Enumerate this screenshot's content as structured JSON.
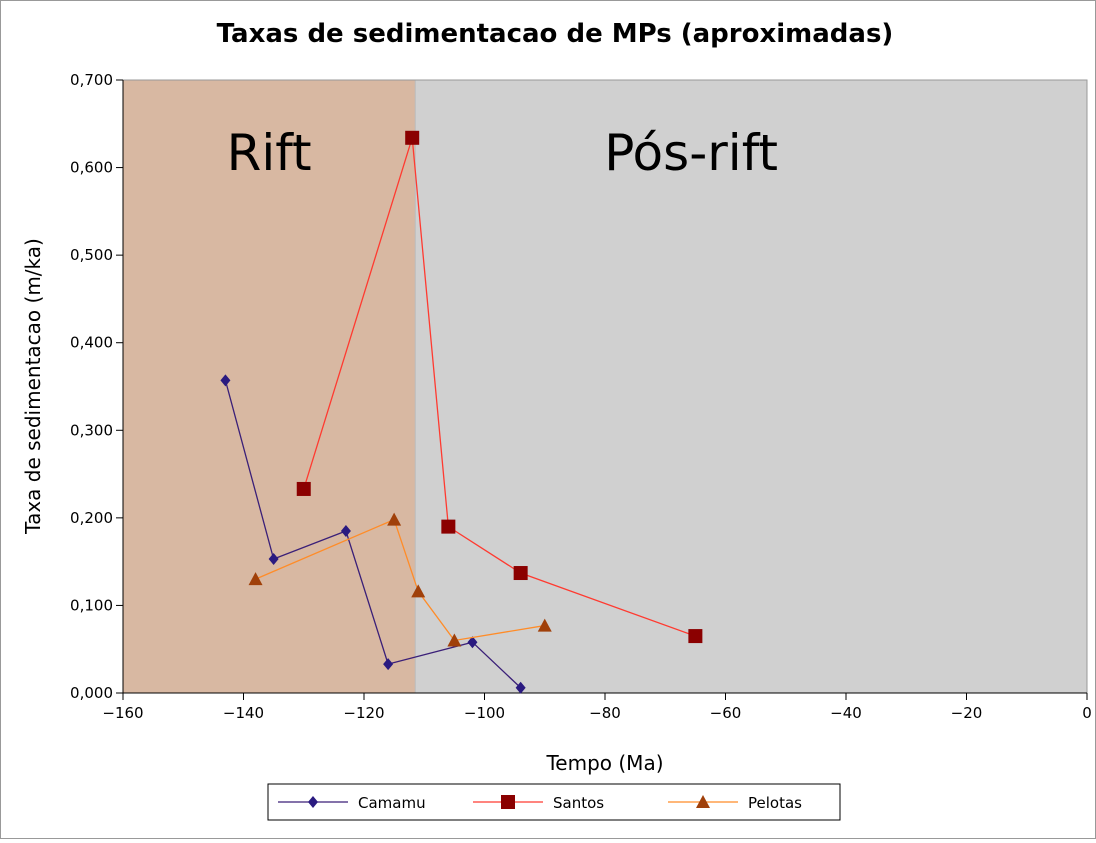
{
  "chart_data": {
    "type": "line",
    "title": "Taxas de sedimentacao de MPs (aproximadas)",
    "xlabel": "Tempo (Ma)",
    "ylabel": "Taxa de sedimentacao (m/ka)",
    "xlim": [
      -160,
      0
    ],
    "ylim": [
      0,
      0.7
    ],
    "xticks": [
      {
        "value": -160,
        "label": "−160"
      },
      {
        "value": -140,
        "label": "−140"
      },
      {
        "value": -120,
        "label": "−120"
      },
      {
        "value": -100,
        "label": "−100"
      },
      {
        "value": -80,
        "label": "−80"
      },
      {
        "value": -60,
        "label": "−60"
      },
      {
        "value": -40,
        "label": "−40"
      },
      {
        "value": -20,
        "label": "−20"
      },
      0
    ],
    "yticks": [
      {
        "value": 0,
        "label": "0,000"
      },
      {
        "value": 0.1,
        "label": "0,100"
      },
      {
        "value": 0.2,
        "label": "0,200"
      },
      {
        "value": 0.3,
        "label": "0,300"
      },
      {
        "value": 0.4,
        "label": "0,400"
      },
      {
        "value": 0.5,
        "label": "0,500"
      },
      {
        "value": 0.6,
        "label": "0,600"
      },
      {
        "value": 0.7,
        "label": "0,700"
      }
    ],
    "regions": [
      {
        "label": "Rift",
        "x": [
          -160,
          -111.5
        ],
        "color": "#d8b8a2"
      },
      {
        "label": "Pós-rift",
        "x": [
          -111.5,
          0
        ],
        "color": "#d0d0d0"
      }
    ],
    "legend": "bottom",
    "series": [
      {
        "name": "Camamu",
        "color": "#3a1f78",
        "marker": "diamond",
        "marker_color": "#2a1a80",
        "x": [
          -143,
          -135,
          -123,
          -116,
          -102,
          -94
        ],
        "values": [
          0.357,
          0.153,
          0.185,
          0.033,
          0.058,
          0.006
        ]
      },
      {
        "name": "Santos",
        "color": "#ff3a30",
        "marker": "square",
        "marker_color": "#8b0000",
        "x": [
          -130,
          -112,
          -106,
          -94,
          -65
        ],
        "values": [
          0.233,
          0.634,
          0.19,
          0.137,
          0.065
        ]
      },
      {
        "name": "Pelotas",
        "color": "#ff8c28",
        "marker": "triangle",
        "marker_color": "#a0400a",
        "x": [
          -138,
          -115,
          -111,
          -105,
          -90
        ],
        "values": [
          0.13,
          0.198,
          0.116,
          0.06,
          0.077
        ]
      }
    ]
  }
}
